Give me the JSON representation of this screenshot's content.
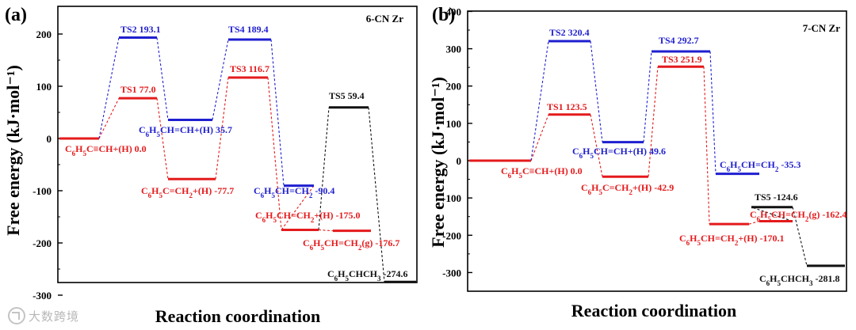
{
  "watermark": "大数跨境",
  "chart_data": [
    {
      "type": "energy-profile",
      "panel_label": "(a)",
      "title": "6-CN Zr",
      "xlabel": "Reaction coordination",
      "ylabel": "Free energy (kJ·mol⁻¹)",
      "ylim": [
        -300,
        240
      ],
      "yticks": [
        200,
        100,
        0,
        -100,
        -200,
        -300
      ],
      "levels": [
        {
          "id": "a0",
          "value": 0.0,
          "label": "C₆H₅C≡CH+(H) 0.0",
          "color": "#e41a1c"
        },
        {
          "id": "a1",
          "value": 77.0,
          "label": "TS1 77.0",
          "color": "#e41a1c"
        },
        {
          "id": "a2",
          "value": -77.7,
          "label": "C₆H₅C=CH₂+(H) -77.7",
          "color": "#e41a1c"
        },
        {
          "id": "a3",
          "value": 116.7,
          "label": "TS3 116.7",
          "color": "#e41a1c"
        },
        {
          "id": "a4",
          "value": -175.0,
          "label": "C₆H₅CH=CH₂+(H) -175.0",
          "color": "#e41a1c"
        },
        {
          "id": "a5",
          "value": -176.7,
          "label": "C₆H₅CH=CH₂(g) -176.7",
          "color": "#e41a1c"
        },
        {
          "id": "a6",
          "value": 193.1,
          "label": "TS2 193.1",
          "color": "#1f1fd0"
        },
        {
          "id": "a7",
          "value": 35.7,
          "label": "C₆H₅CH=CH+(H) 35.7",
          "color": "#1f1fd0"
        },
        {
          "id": "a8",
          "value": 189.4,
          "label": "TS4 189.4",
          "color": "#1f1fd0"
        },
        {
          "id": "a9",
          "value": -90.4,
          "label": "C₆H₅CH=CH₂ -90.4",
          "color": "#1f1fd0"
        },
        {
          "id": "a10",
          "value": 59.4,
          "label": "TS5 59.4",
          "color": "#111111"
        },
        {
          "id": "a11",
          "value": -274.6,
          "label": "C₆H₅CHCH₃ -274.6",
          "color": "#111111"
        }
      ]
    },
    {
      "type": "energy-profile",
      "panel_label": "(b)",
      "title": "7-CN Zr",
      "xlabel": "Reaction coordination",
      "ylabel": "Free energy (kJ·mol⁻¹)",
      "ylim": [
        -320,
        400
      ],
      "yticks": [
        400,
        300,
        200,
        100,
        0,
        -100,
        -200,
        -300
      ],
      "levels": [
        {
          "id": "b0",
          "value": 0.0,
          "label": "C₆H₅C≡CH+(H) 0.0",
          "color": "#e41a1c"
        },
        {
          "id": "b1",
          "value": 123.5,
          "label": "TS1 123.5",
          "color": "#e41a1c"
        },
        {
          "id": "b2",
          "value": -42.9,
          "label": "C₆H₅C=CH₂+(H) -42.9",
          "color": "#e41a1c"
        },
        {
          "id": "b3",
          "value": 251.9,
          "label": "TS3 251.9",
          "color": "#e41a1c"
        },
        {
          "id": "b4",
          "value": -170.1,
          "label": "C₆H₅CH=CH₂+(H) -170.1",
          "color": "#e41a1c"
        },
        {
          "id": "b5",
          "value": -162.4,
          "label": "C₆H₅CH=CH₂(g) -162.4",
          "color": "#e41a1c"
        },
        {
          "id": "b6",
          "value": 320.4,
          "label": "TS2 320.4",
          "color": "#1f1fd0"
        },
        {
          "id": "b7",
          "value": 49.6,
          "label": "C₆H₅CH=CH+(H) 49.6",
          "color": "#1f1fd0"
        },
        {
          "id": "b8",
          "value": 292.7,
          "label": "TS4 292.7",
          "color": "#1f1fd0"
        },
        {
          "id": "b9",
          "value": -35.3,
          "label": "C₆H₅CH=CH₂ -35.3",
          "color": "#1f1fd0"
        },
        {
          "id": "b10",
          "value": -124.6,
          "label": "TS5 -124.6",
          "color": "#111111"
        },
        {
          "id": "b11",
          "value": -281.8,
          "label": "C₆H₅CHCH₃ -281.8",
          "color": "#111111"
        }
      ]
    }
  ]
}
